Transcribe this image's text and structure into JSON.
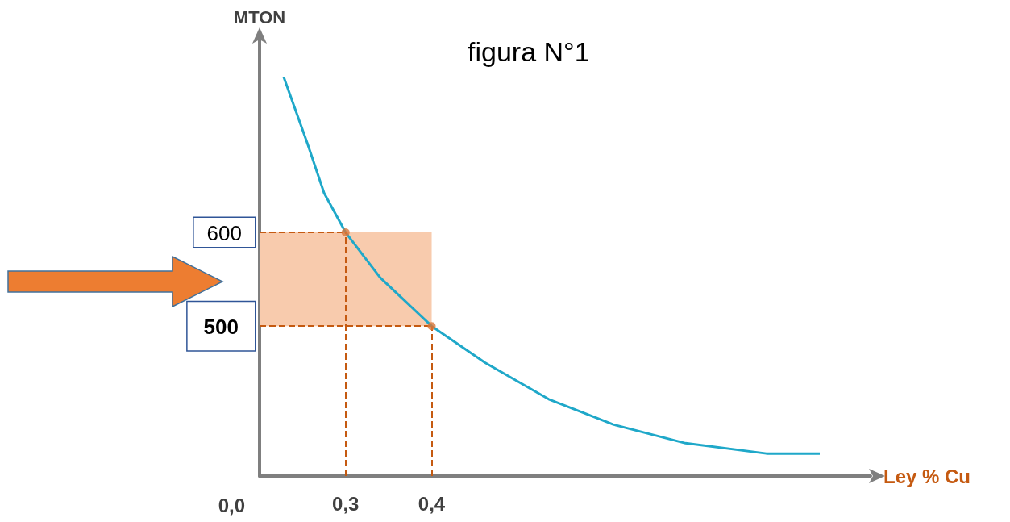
{
  "chart_data": {
    "type": "line",
    "title": "figura N°1",
    "xlabel": "Ley % Cu",
    "ylabel": "MTON",
    "x": [
      0.228,
      0.256,
      0.275,
      0.3,
      0.34,
      0.4,
      0.462,
      0.536,
      0.611,
      0.695,
      0.789,
      0.851
    ],
    "series": [
      {
        "color": "#1fa8c9",
        "marker": "none",
        "values": [
          766,
          694,
          642,
          600,
          552,
          500,
          461,
          422,
          395,
          375,
          364,
          364
        ]
      },
      {
        "type": "scatter",
        "color": "#d9773a",
        "marker": "circle",
        "x": [
          0.3,
          0.4
        ],
        "values": [
          600,
          500
        ]
      }
    ],
    "xlim": [
      0.2,
      0.91
    ],
    "ylim": [
      340,
      805
    ],
    "xticks": [
      {
        "value": 0.3,
        "label": "0,3"
      },
      {
        "value": 0.4,
        "label": "0,4"
      }
    ],
    "yticks": [
      500,
      600
    ],
    "ref_lines": [
      {
        "axis": "x",
        "value": 0.3,
        "color": "#c55a11",
        "line_style": "dashed"
      },
      {
        "axis": "x",
        "value": 0.4,
        "color": "#c55a11",
        "line_style": "dashed"
      },
      {
        "axis": "y",
        "value": 600,
        "color": "#c55a11",
        "line_style": "dashed"
      },
      {
        "axis": "y",
        "value": 500,
        "color": "#c55a11",
        "line_style": "dashed"
      }
    ],
    "bands": [
      {
        "axis": "y",
        "from": 500,
        "to": 600,
        "color": "#f8cbad"
      }
    ],
    "annotations": [
      "0,0"
    ]
  }
}
